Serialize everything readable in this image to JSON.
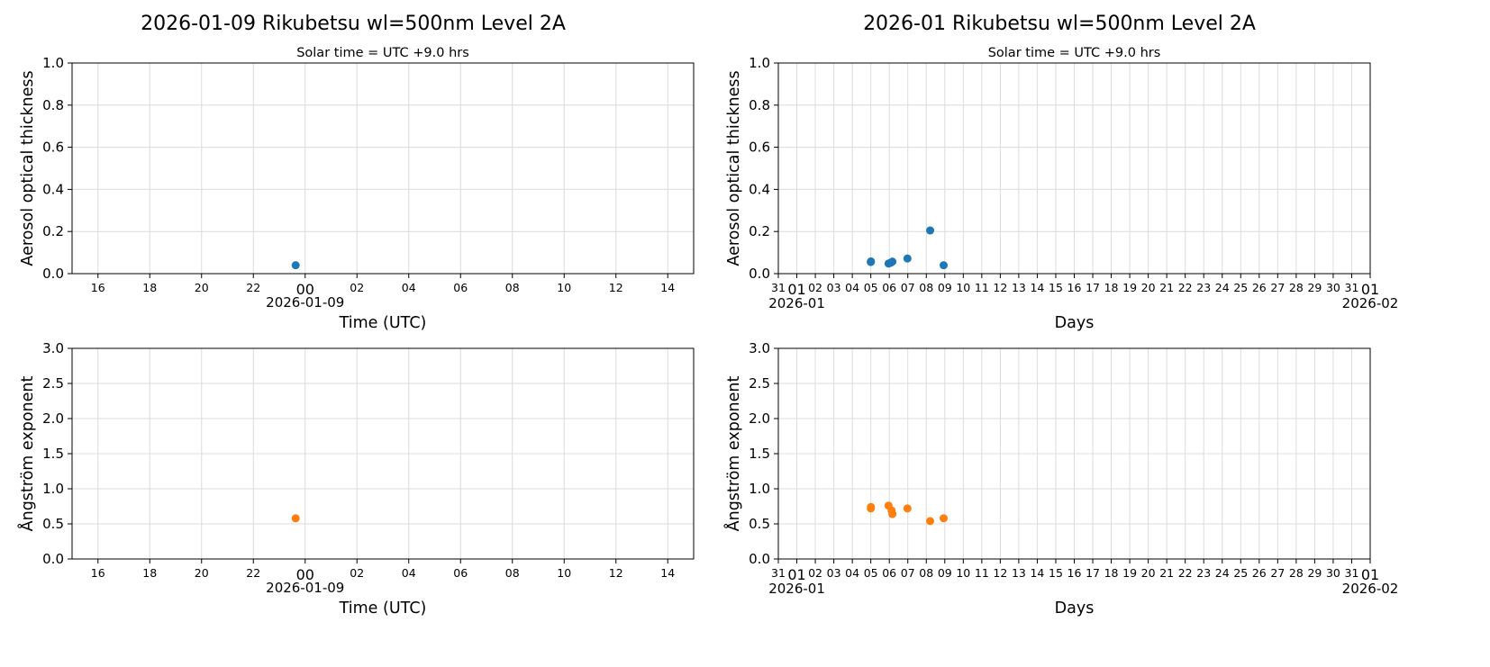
{
  "chart_data": [
    {
      "type": "scatter",
      "title": "2026-01-09  Rikubetsu  wl=500nm  Level 2A",
      "subtitle": "Solar time = UTC +9.0 hrs",
      "xlabel": "",
      "ylabel": "Aerosol optical thickness",
      "xlim": [
        "2026-01-08 15:00",
        "2026-01-09 15:00"
      ],
      "ylim": [
        0,
        1
      ],
      "yticks": [
        "0.0",
        "0.2",
        "0.4",
        "0.6",
        "0.8",
        "1.0"
      ],
      "xticks": [
        "16",
        "18",
        "20",
        "22",
        "00",
        "02",
        "04",
        "06",
        "08",
        "10",
        "12",
        "14"
      ],
      "xtick_sublabel": "2026-01-09",
      "grid": true,
      "color": "#1f77b4",
      "points": [
        {
          "x": "2026-01-08 23:38",
          "y": 0.04
        }
      ]
    },
    {
      "type": "scatter",
      "title": "2026-01  Rikubetsu  wl=500nm  Level 2A",
      "subtitle": "Solar time = UTC +9.0 hrs",
      "xlabel": "Days",
      "ylabel": "Aerosol optical thickness",
      "xlim": [
        "2025-12-31",
        "2026-02-01"
      ],
      "ylim": [
        0,
        1
      ],
      "yticks": [
        "0.0",
        "0.2",
        "0.4",
        "0.6",
        "0.8",
        "1.0"
      ],
      "xticks": [
        "31",
        "01",
        "02",
        "03",
        "04",
        "05",
        "06",
        "07",
        "08",
        "09",
        "10",
        "11",
        "12",
        "13",
        "14",
        "15",
        "16",
        "17",
        "18",
        "19",
        "20",
        "21",
        "22",
        "23",
        "24",
        "25",
        "26",
        "27",
        "28",
        "29",
        "30",
        "31",
        "01"
      ],
      "xtick_sublabels": [
        "2026-01",
        "2026-02"
      ],
      "grid": true,
      "color": "#1f77b4",
      "points": [
        {
          "x": "2026-01-05 00:00",
          "y": 0.055
        },
        {
          "x": "2026-01-05 00:10",
          "y": 0.058
        },
        {
          "x": "2026-01-05 23:00",
          "y": 0.048
        },
        {
          "x": "2026-01-06 02:00",
          "y": 0.052
        },
        {
          "x": "2026-01-06 04:00",
          "y": 0.057
        },
        {
          "x": "2026-01-06 23:30",
          "y": 0.072
        },
        {
          "x": "2026-01-08 05:00",
          "y": 0.205
        },
        {
          "x": "2026-01-08 22:30",
          "y": 0.04
        }
      ]
    },
    {
      "type": "scatter",
      "title": "",
      "xlabel": "Time (UTC)",
      "ylabel": "Ångström exponent",
      "xlim": [
        "2026-01-08 15:00",
        "2026-01-09 15:00"
      ],
      "ylim": [
        0,
        3
      ],
      "yticks": [
        "0.0",
        "0.5",
        "1.0",
        "1.5",
        "2.0",
        "2.5",
        "3.0"
      ],
      "xticks": [
        "16",
        "18",
        "20",
        "22",
        "00",
        "02",
        "04",
        "06",
        "08",
        "10",
        "12",
        "14"
      ],
      "xtick_sublabel": "2026-01-09",
      "grid": true,
      "color": "#ff7f0e",
      "points": [
        {
          "x": "2026-01-08 23:38",
          "y": 0.58
        }
      ]
    },
    {
      "type": "scatter",
      "title": "",
      "xlabel": "Days",
      "ylabel": "Ångström exponent",
      "xlim": [
        "2025-12-31",
        "2026-02-01"
      ],
      "ylim": [
        0,
        3
      ],
      "yticks": [
        "0.0",
        "0.5",
        "1.0",
        "1.5",
        "2.0",
        "2.5",
        "3.0"
      ],
      "xticks": [
        "31",
        "01",
        "02",
        "03",
        "04",
        "05",
        "06",
        "07",
        "08",
        "09",
        "10",
        "11",
        "12",
        "13",
        "14",
        "15",
        "16",
        "17",
        "18",
        "19",
        "20",
        "21",
        "22",
        "23",
        "24",
        "25",
        "26",
        "27",
        "28",
        "29",
        "30",
        "31",
        "01"
      ],
      "xtick_sublabels": [
        "2026-01",
        "2026-02"
      ],
      "grid": true,
      "color": "#ff7f0e",
      "points": [
        {
          "x": "2026-01-05 00:00",
          "y": 0.72
        },
        {
          "x": "2026-01-05 00:10",
          "y": 0.74
        },
        {
          "x": "2026-01-05 23:00",
          "y": 0.76
        },
        {
          "x": "2026-01-06 03:00",
          "y": 0.69
        },
        {
          "x": "2026-01-06 04:00",
          "y": 0.64
        },
        {
          "x": "2026-01-06 23:30",
          "y": 0.72
        },
        {
          "x": "2026-01-08 05:00",
          "y": 0.54
        },
        {
          "x": "2026-01-08 22:30",
          "y": 0.58
        }
      ]
    }
  ]
}
